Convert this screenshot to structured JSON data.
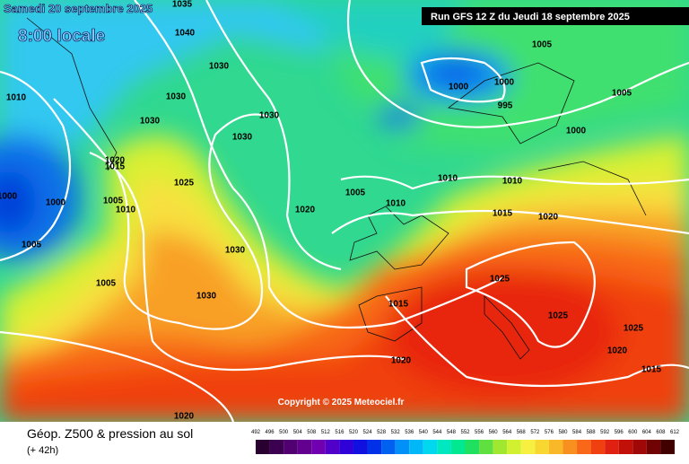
{
  "header": {
    "date": "Samedi 20 septembre 2025",
    "time": "8:00 locale",
    "run": "Run GFS 12 Z du Jeudi 18 septembre 2025"
  },
  "copyright": "Copyright © 2025 Meteociel.fr",
  "legend": {
    "title": "Géop. Z500 & pression au sol",
    "lead": "(+ 42h)",
    "labels": [
      492,
      496,
      500,
      504,
      508,
      512,
      516,
      520,
      524,
      528,
      532,
      536,
      540,
      544,
      548,
      552,
      556,
      560,
      564,
      568,
      572,
      576,
      580,
      584,
      588,
      592,
      596,
      600,
      604,
      608,
      612
    ],
    "colors": [
      "#2a0030",
      "#3c0050",
      "#500070",
      "#640090",
      "#7000b0",
      "#5000c8",
      "#3000d8",
      "#1010e0",
      "#0030e8",
      "#0060f0",
      "#0090f8",
      "#00b8f8",
      "#00d8f0",
      "#00e8c0",
      "#00e890",
      "#20e060",
      "#60e040",
      "#a0e830",
      "#d0f030",
      "#f8f040",
      "#f8d830",
      "#f8b828",
      "#f89020",
      "#f86818",
      "#f04010",
      "#e02010",
      "#c01008",
      "#a00808",
      "#700404",
      "#400000"
    ]
  },
  "isobar_labels": [
    "1035",
    "1040",
    "1030",
    "1010",
    "1030",
    "1030",
    "1030",
    "1030",
    "1020",
    "1015",
    "1025",
    "1000",
    "1005",
    "1010",
    "1000",
    "1005",
    "1005",
    "1030",
    "1030",
    "1020",
    "1005",
    "1010",
    "1010",
    "1010",
    "1015",
    "1020",
    "1005",
    "1000",
    "1000",
    "995",
    "1000",
    "1005",
    "1025",
    "1025",
    "1015",
    "1025",
    "1020",
    "1015",
    "1020",
    "1020"
  ]
}
